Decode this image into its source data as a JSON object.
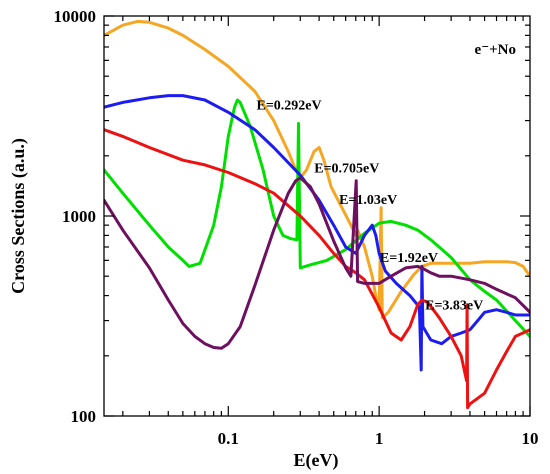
{
  "chart_data": {
    "type": "line",
    "title": "",
    "xlabel": "E(eV)",
    "ylabel": "Cross Sections (a.u.)",
    "xscale": "log",
    "yscale": "log",
    "xlim": [
      0.015,
      10
    ],
    "ylim": [
      100,
      10000
    ],
    "grid": false,
    "x_ticks": [
      {
        "value": 0.1,
        "label": "0.1"
      },
      {
        "value": 1,
        "label": "1"
      },
      {
        "value": 10,
        "label": "10"
      }
    ],
    "y_ticks": [
      {
        "value": 100,
        "label": "100"
      },
      {
        "value": 1000,
        "label": "1000"
      },
      {
        "value": 10000,
        "label": "10000"
      }
    ],
    "legend_text": "e⁻+No",
    "legend_position": "top-right",
    "annotations": [
      {
        "text": "E=0.292eV",
        "x": 0.292,
        "y": 3400
      },
      {
        "text": "E=0.705eV",
        "x": 0.705,
        "y": 1650
      },
      {
        "text": "E=1.03eV",
        "x": 1.03,
        "y": 1150
      },
      {
        "text": "E=1.92eV",
        "x": 1.92,
        "y": 590
      },
      {
        "text": "E=3.83eV",
        "x": 3.83,
        "y": 340
      }
    ],
    "series": [
      {
        "color": "#f5a623",
        "points": [
          [
            0.015,
            8000
          ],
          [
            0.02,
            9000
          ],
          [
            0.025,
            9400
          ],
          [
            0.03,
            9300
          ],
          [
            0.04,
            8700
          ],
          [
            0.05,
            8000
          ],
          [
            0.07,
            6800
          ],
          [
            0.1,
            5600
          ],
          [
            0.15,
            4200
          ],
          [
            0.2,
            3000
          ],
          [
            0.25,
            2100
          ],
          [
            0.28,
            1700
          ],
          [
            0.3,
            1550
          ],
          [
            0.33,
            1700
          ],
          [
            0.37,
            2100
          ],
          [
            0.4,
            2200
          ],
          [
            0.43,
            1900
          ],
          [
            0.48,
            1400
          ],
          [
            0.55,
            1150
          ],
          [
            0.65,
            900
          ],
          [
            0.7,
            800
          ],
          [
            0.72,
            850
          ],
          [
            0.8,
            700
          ],
          [
            0.9,
            500
          ],
          [
            0.95,
            400
          ],
          [
            1.0,
            340
          ],
          [
            1.03,
            1100
          ],
          [
            1.05,
            310
          ],
          [
            1.15,
            330
          ],
          [
            1.4,
            420
          ],
          [
            1.7,
            510
          ],
          [
            1.92,
            560
          ],
          [
            2.2,
            580
          ],
          [
            3,
            580
          ],
          [
            4,
            580
          ],
          [
            5,
            590
          ],
          [
            6,
            590
          ],
          [
            7,
            590
          ],
          [
            8,
            585
          ],
          [
            9,
            560
          ],
          [
            10,
            500
          ]
        ]
      },
      {
        "color": "#00e000",
        "points": [
          [
            0.015,
            1700
          ],
          [
            0.02,
            1300
          ],
          [
            0.03,
            900
          ],
          [
            0.04,
            700
          ],
          [
            0.05,
            600
          ],
          [
            0.055,
            560
          ],
          [
            0.065,
            580
          ],
          [
            0.08,
            900
          ],
          [
            0.09,
            1400
          ],
          [
            0.1,
            2500
          ],
          [
            0.11,
            3500
          ],
          [
            0.115,
            3800
          ],
          [
            0.12,
            3700
          ],
          [
            0.14,
            2800
          ],
          [
            0.17,
            1700
          ],
          [
            0.2,
            1000
          ],
          [
            0.23,
            800
          ],
          [
            0.26,
            770
          ],
          [
            0.285,
            760
          ],
          [
            0.292,
            2900
          ],
          [
            0.3,
            550
          ],
          [
            0.35,
            570
          ],
          [
            0.45,
            600
          ],
          [
            0.6,
            680
          ],
          [
            0.8,
            820
          ],
          [
            1.0,
            920
          ],
          [
            1.2,
            940
          ],
          [
            1.5,
            900
          ],
          [
            1.8,
            850
          ],
          [
            2.2,
            760
          ],
          [
            3,
            620
          ],
          [
            4,
            480
          ],
          [
            5,
            420
          ],
          [
            6,
            380
          ],
          [
            8,
            300
          ],
          [
            10,
            250
          ]
        ]
      },
      {
        "color": "#1c1cf0",
        "points": [
          [
            0.015,
            3500
          ],
          [
            0.02,
            3700
          ],
          [
            0.03,
            3900
          ],
          [
            0.04,
            4000
          ],
          [
            0.05,
            4000
          ],
          [
            0.07,
            3800
          ],
          [
            0.1,
            3300
          ],
          [
            0.15,
            2700
          ],
          [
            0.2,
            2200
          ],
          [
            0.3,
            1600
          ],
          [
            0.4,
            1200
          ],
          [
            0.5,
            900
          ],
          [
            0.6,
            700
          ],
          [
            0.7,
            650
          ],
          [
            0.8,
            800
          ],
          [
            0.9,
            900
          ],
          [
            0.95,
            800
          ],
          [
            1.0,
            650
          ],
          [
            1.1,
            530
          ],
          [
            1.3,
            460
          ],
          [
            1.6,
            400
          ],
          [
            1.85,
            350
          ],
          [
            1.9,
            170
          ],
          [
            1.92,
            560
          ],
          [
            1.95,
            280
          ],
          [
            2.2,
            240
          ],
          [
            2.6,
            230
          ],
          [
            3,
            250
          ],
          [
            3.5,
            260
          ],
          [
            4,
            270
          ],
          [
            4.5,
            300
          ],
          [
            5,
            330
          ],
          [
            6,
            340
          ],
          [
            7,
            330
          ],
          [
            8,
            320
          ],
          [
            10,
            320
          ]
        ]
      },
      {
        "color": "#ee1111",
        "points": [
          [
            0.015,
            2700
          ],
          [
            0.02,
            2500
          ],
          [
            0.03,
            2200
          ],
          [
            0.05,
            1900
          ],
          [
            0.07,
            1800
          ],
          [
            0.1,
            1650
          ],
          [
            0.15,
            1450
          ],
          [
            0.2,
            1300
          ],
          [
            0.3,
            1000
          ],
          [
            0.4,
            800
          ],
          [
            0.5,
            650
          ],
          [
            0.6,
            560
          ],
          [
            0.7,
            520
          ],
          [
            0.8,
            480
          ],
          [
            1.0,
            350
          ],
          [
            1.2,
            260
          ],
          [
            1.4,
            240
          ],
          [
            1.6,
            280
          ],
          [
            1.8,
            360
          ],
          [
            1.92,
            380
          ],
          [
            2.1,
            370
          ],
          [
            2.5,
            310
          ],
          [
            3,
            250
          ],
          [
            3.5,
            200
          ],
          [
            3.8,
            150
          ],
          [
            3.83,
            360
          ],
          [
            3.86,
            110
          ],
          [
            4,
            115
          ],
          [
            5,
            130
          ],
          [
            6,
            170
          ],
          [
            7,
            210
          ],
          [
            8,
            250
          ],
          [
            10,
            270
          ]
        ]
      },
      {
        "color": "#6e1060",
        "points": [
          [
            0.015,
            1200
          ],
          [
            0.02,
            850
          ],
          [
            0.03,
            550
          ],
          [
            0.04,
            380
          ],
          [
            0.05,
            290
          ],
          [
            0.06,
            250
          ],
          [
            0.07,
            230
          ],
          [
            0.08,
            220
          ],
          [
            0.09,
            218
          ],
          [
            0.1,
            230
          ],
          [
            0.12,
            280
          ],
          [
            0.15,
            450
          ],
          [
            0.2,
            850
          ],
          [
            0.25,
            1300
          ],
          [
            0.28,
            1500
          ],
          [
            0.3,
            1550
          ],
          [
            0.35,
            1400
          ],
          [
            0.4,
            1150
          ],
          [
            0.5,
            750
          ],
          [
            0.6,
            550
          ],
          [
            0.65,
            500
          ],
          [
            0.705,
            1500
          ],
          [
            0.72,
            470
          ],
          [
            0.8,
            460
          ],
          [
            1.0,
            460
          ],
          [
            1.2,
            500
          ],
          [
            1.5,
            550
          ],
          [
            1.8,
            560
          ],
          [
            1.92,
            550
          ],
          [
            2.2,
            520
          ],
          [
            2.5,
            500
          ],
          [
            3,
            500
          ],
          [
            4,
            480
          ],
          [
            5,
            460
          ],
          [
            6,
            430
          ],
          [
            8,
            390
          ],
          [
            10,
            330
          ]
        ]
      }
    ]
  }
}
